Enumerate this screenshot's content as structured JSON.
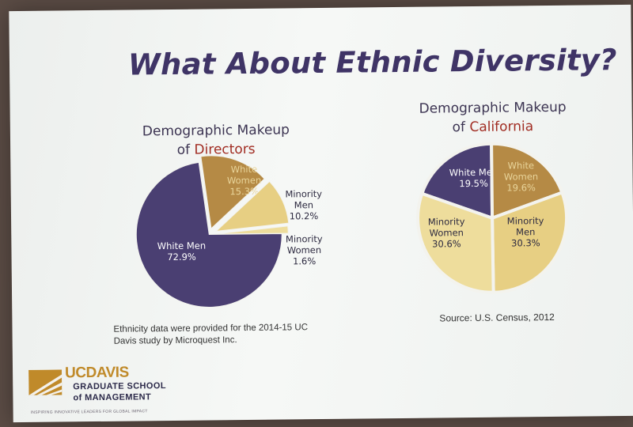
{
  "slide": {
    "title": "What About Ethnic Diversity?",
    "footnote": "Ethnicity data were provided for the 2014-15 UC Davis study by Microquest Inc.",
    "source": "Source: U.S. Census, 2012"
  },
  "logo": {
    "name": "UCDAVIS",
    "line1": "GRADUATE SCHOOL",
    "line2": "of MANAGEMENT",
    "tagline": "INSPIRING INNOVATIVE LEADERS FOR GLOBAL IMPACT"
  },
  "colors": {
    "white_men": "#4a3f72",
    "white_women": "#b58a45",
    "minority_men": "#e7cf83",
    "minority_women": "#eedd9c",
    "highlight": "#a12d23",
    "title": "#3f3466"
  },
  "chart_data": [
    {
      "type": "pie",
      "title_line1": "Demographic Makeup",
      "title_prefix": "of ",
      "title_highlight": "Directors",
      "slices": [
        {
          "label_lines": [
            "White Men"
          ],
          "value": 72.9,
          "value_text": "72.9%",
          "color": "#4a3f72",
          "label_color": "#ffffff"
        },
        {
          "label_lines": [
            "White",
            "Women"
          ],
          "value": 15.3,
          "value_text": "15.3%",
          "color": "#b58a45",
          "label_color": "#e8d49a"
        },
        {
          "label_lines": [
            "Minority",
            "Men"
          ],
          "value": 10.2,
          "value_text": "10.2%",
          "color": "#e7cf83",
          "label_color": "#2d2a40"
        },
        {
          "label_lines": [
            "Minority",
            "Women"
          ],
          "value": 1.6,
          "value_text": "1.6%",
          "color": "#eedd9c",
          "label_color": "#2d2a40"
        }
      ]
    },
    {
      "type": "pie",
      "title_line1": "Demographic Makeup",
      "title_prefix": "of ",
      "title_highlight": "California",
      "slices": [
        {
          "label_lines": [
            "White Men"
          ],
          "value": 19.5,
          "value_text": "19.5%",
          "color": "#4a3f72",
          "label_color": "#ffffff"
        },
        {
          "label_lines": [
            "White",
            "Women"
          ],
          "value": 19.6,
          "value_text": "19.6%",
          "color": "#b58a45",
          "label_color": "#e8d49a"
        },
        {
          "label_lines": [
            "Minority",
            "Men"
          ],
          "value": 30.3,
          "value_text": "30.3%",
          "color": "#e7cf83",
          "label_color": "#2d2a40"
        },
        {
          "label_lines": [
            "Minority",
            "Women"
          ],
          "value": 30.6,
          "value_text": "30.6%",
          "color": "#eedd9c",
          "label_color": "#2d2a40"
        }
      ]
    }
  ]
}
